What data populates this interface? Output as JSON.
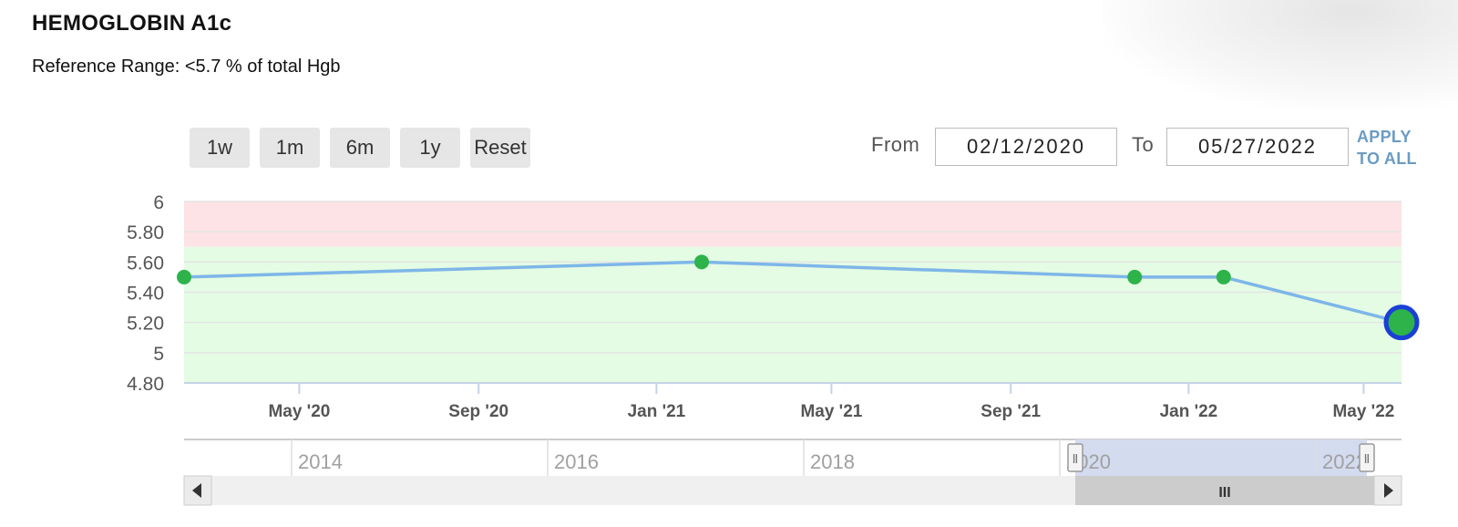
{
  "header": {
    "title": "HEMOGLOBIN A1c",
    "reference": "Reference Range: <5.7 % of total Hgb"
  },
  "range_buttons": [
    "1w",
    "1m",
    "6m",
    "1y",
    "Reset"
  ],
  "date_range": {
    "from_label": "From",
    "from_value": "02/12/2020",
    "to_label": "To",
    "to_value": "05/27/2022",
    "apply_line1": "APPLY",
    "apply_line2": "TO ALL"
  },
  "colors": {
    "line": "#7eb6e8",
    "point": "#2db34a",
    "selected_ring": "#1a3fd6",
    "normal_band": "#e4fce4",
    "high_band": "#fde3e5",
    "navigator_window": "#d3dbef"
  },
  "chart_data": {
    "type": "line",
    "series": [
      {
        "x": [
          "2020-02-12",
          "2021-02-01",
          "2021-11-25",
          "2022-01-25",
          "2022-05-27"
        ],
        "y": [
          5.5,
          5.6,
          5.5,
          5.5,
          5.2
        ]
      }
    ],
    "selected_point": "2022-05-27",
    "xlim": [
      "2020-02-12",
      "2022-05-27"
    ],
    "ylim": [
      4.8,
      6
    ],
    "y_ticks": [
      "6",
      "5.80",
      "5.60",
      "5.40",
      "5.20",
      "5",
      "4.80"
    ],
    "x_ticks": [
      {
        "date": "2020-05-01",
        "label": "May '20"
      },
      {
        "date": "2020-09-01",
        "label": "Sep '20"
      },
      {
        "date": "2021-01-01",
        "label": "Jan '21"
      },
      {
        "date": "2021-05-01",
        "label": "May '21"
      },
      {
        "date": "2021-09-01",
        "label": "Sep '21"
      },
      {
        "date": "2022-01-01",
        "label": "Jan '22"
      },
      {
        "date": "2022-05-01",
        "label": "May '22"
      }
    ],
    "bands": [
      {
        "from": 4.8,
        "to": 5.7,
        "kind": "normal"
      },
      {
        "from": 5.7,
        "to": 6.0,
        "kind": "high"
      }
    ],
    "grid": true,
    "navigator": {
      "labels": [
        "2014",
        "2016",
        "2018",
        "2020",
        "2022"
      ],
      "window": [
        "2020-02-12",
        "2022-05-27"
      ],
      "handle_glyph": "Ⅱ",
      "scroll_grip": "III"
    }
  }
}
